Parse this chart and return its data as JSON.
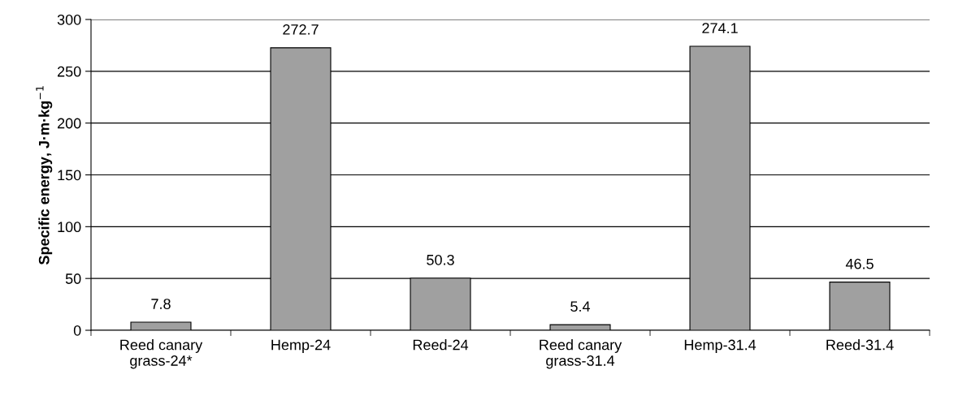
{
  "chart_data": {
    "type": "bar",
    "ylabel": "Specific energy, J·m·kg$^{−1}$",
    "categories": [
      "Reed canary\ngrass-24*",
      "Hemp-24",
      "Reed-24",
      "Reed canary\ngrass-31.4",
      "Hemp-31.4",
      "Reed-31.4"
    ],
    "values": [
      7.8,
      272.7,
      50.3,
      5.4,
      274.1,
      46.5
    ],
    "color": "#a0a0a0",
    "ylim": [
      0,
      300
    ],
    "yticks": [
      0,
      50,
      100,
      150,
      200,
      250,
      300
    ],
    "grid": "y",
    "data_labels": true
  }
}
